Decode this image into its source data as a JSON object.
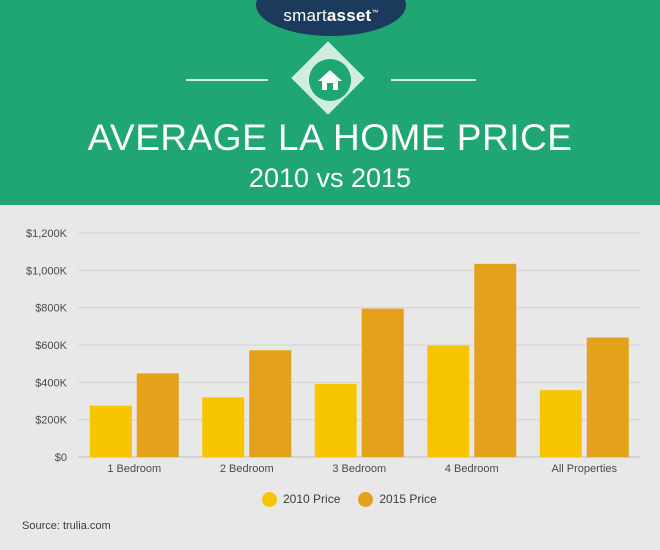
{
  "brand": {
    "name_part1": "smart",
    "name_part2": "asset",
    "trademark": "™"
  },
  "header_icon": "house-icon",
  "colors": {
    "header_bg": "#1fa672",
    "logo_bg": "#1c3b5c",
    "series_2010": "#f7c500",
    "series_2015": "#e3a11c",
    "page_bg": "#e8e8e8"
  },
  "chart_data": {
    "type": "bar",
    "title": "AVERAGE LA HOME PRICE",
    "subtitle": "2010 vs 2015",
    "categories": [
      "1 Bedroom",
      "2 Bedroom",
      "3 Bedroom",
      "4 Bedroom",
      "All Properties"
    ],
    "series": [
      {
        "name": "2010 Price",
        "values": [
          275,
          320,
          392,
          597,
          358
        ]
      },
      {
        "name": "2015 Price",
        "values": [
          448,
          572,
          795,
          1035,
          640
        ]
      }
    ],
    "y_ticks": [
      0,
      200,
      400,
      600,
      800,
      1000,
      1200
    ],
    "y_tick_labels": [
      "$0",
      "$200K",
      "$400K",
      "$600K",
      "$800K",
      "$1,000K",
      "$1,200K"
    ],
    "ylim": [
      0,
      1200
    ],
    "grid": true,
    "legend_position": "bottom-center"
  },
  "source": "Source: trulia.com"
}
